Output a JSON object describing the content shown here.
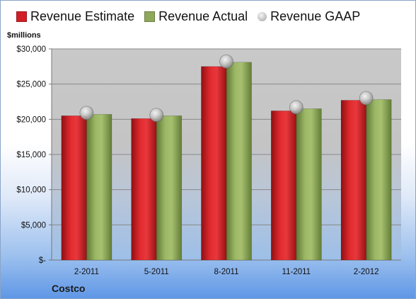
{
  "chart_data": {
    "type": "bar",
    "title": "",
    "xlabel": "",
    "ylabel": "$millions",
    "footer": "Costco",
    "categories": [
      "2-2011",
      "5-2011",
      "8-2011",
      "11-2011",
      "2-2012"
    ],
    "series": [
      {
        "name": "Revenue Estimate",
        "kind": "bar",
        "color": "#d11f25",
        "values": [
          20500,
          20100,
          27500,
          21200,
          22700
        ]
      },
      {
        "name": "Revenue Actual",
        "kind": "bar",
        "color": "#8fa85a",
        "values": [
          20700,
          20500,
          28100,
          21500,
          22800
        ]
      },
      {
        "name": "Revenue GAAP",
        "kind": "marker",
        "color": "#bdbdbd",
        "values": [
          20900,
          20600,
          28200,
          21700,
          23000
        ]
      }
    ],
    "ylim": [
      0,
      30000
    ],
    "yticks": [
      {
        "value": 0,
        "label": "$-"
      },
      {
        "value": 5000,
        "label": "$5,000"
      },
      {
        "value": 10000,
        "label": "$10,000"
      },
      {
        "value": 15000,
        "label": "$15,000"
      },
      {
        "value": 20000,
        "label": "$20,000"
      },
      {
        "value": 25000,
        "label": "$25,000"
      },
      {
        "value": 30000,
        "label": "$30,000"
      }
    ],
    "grid": true,
    "legend_position": "top"
  }
}
